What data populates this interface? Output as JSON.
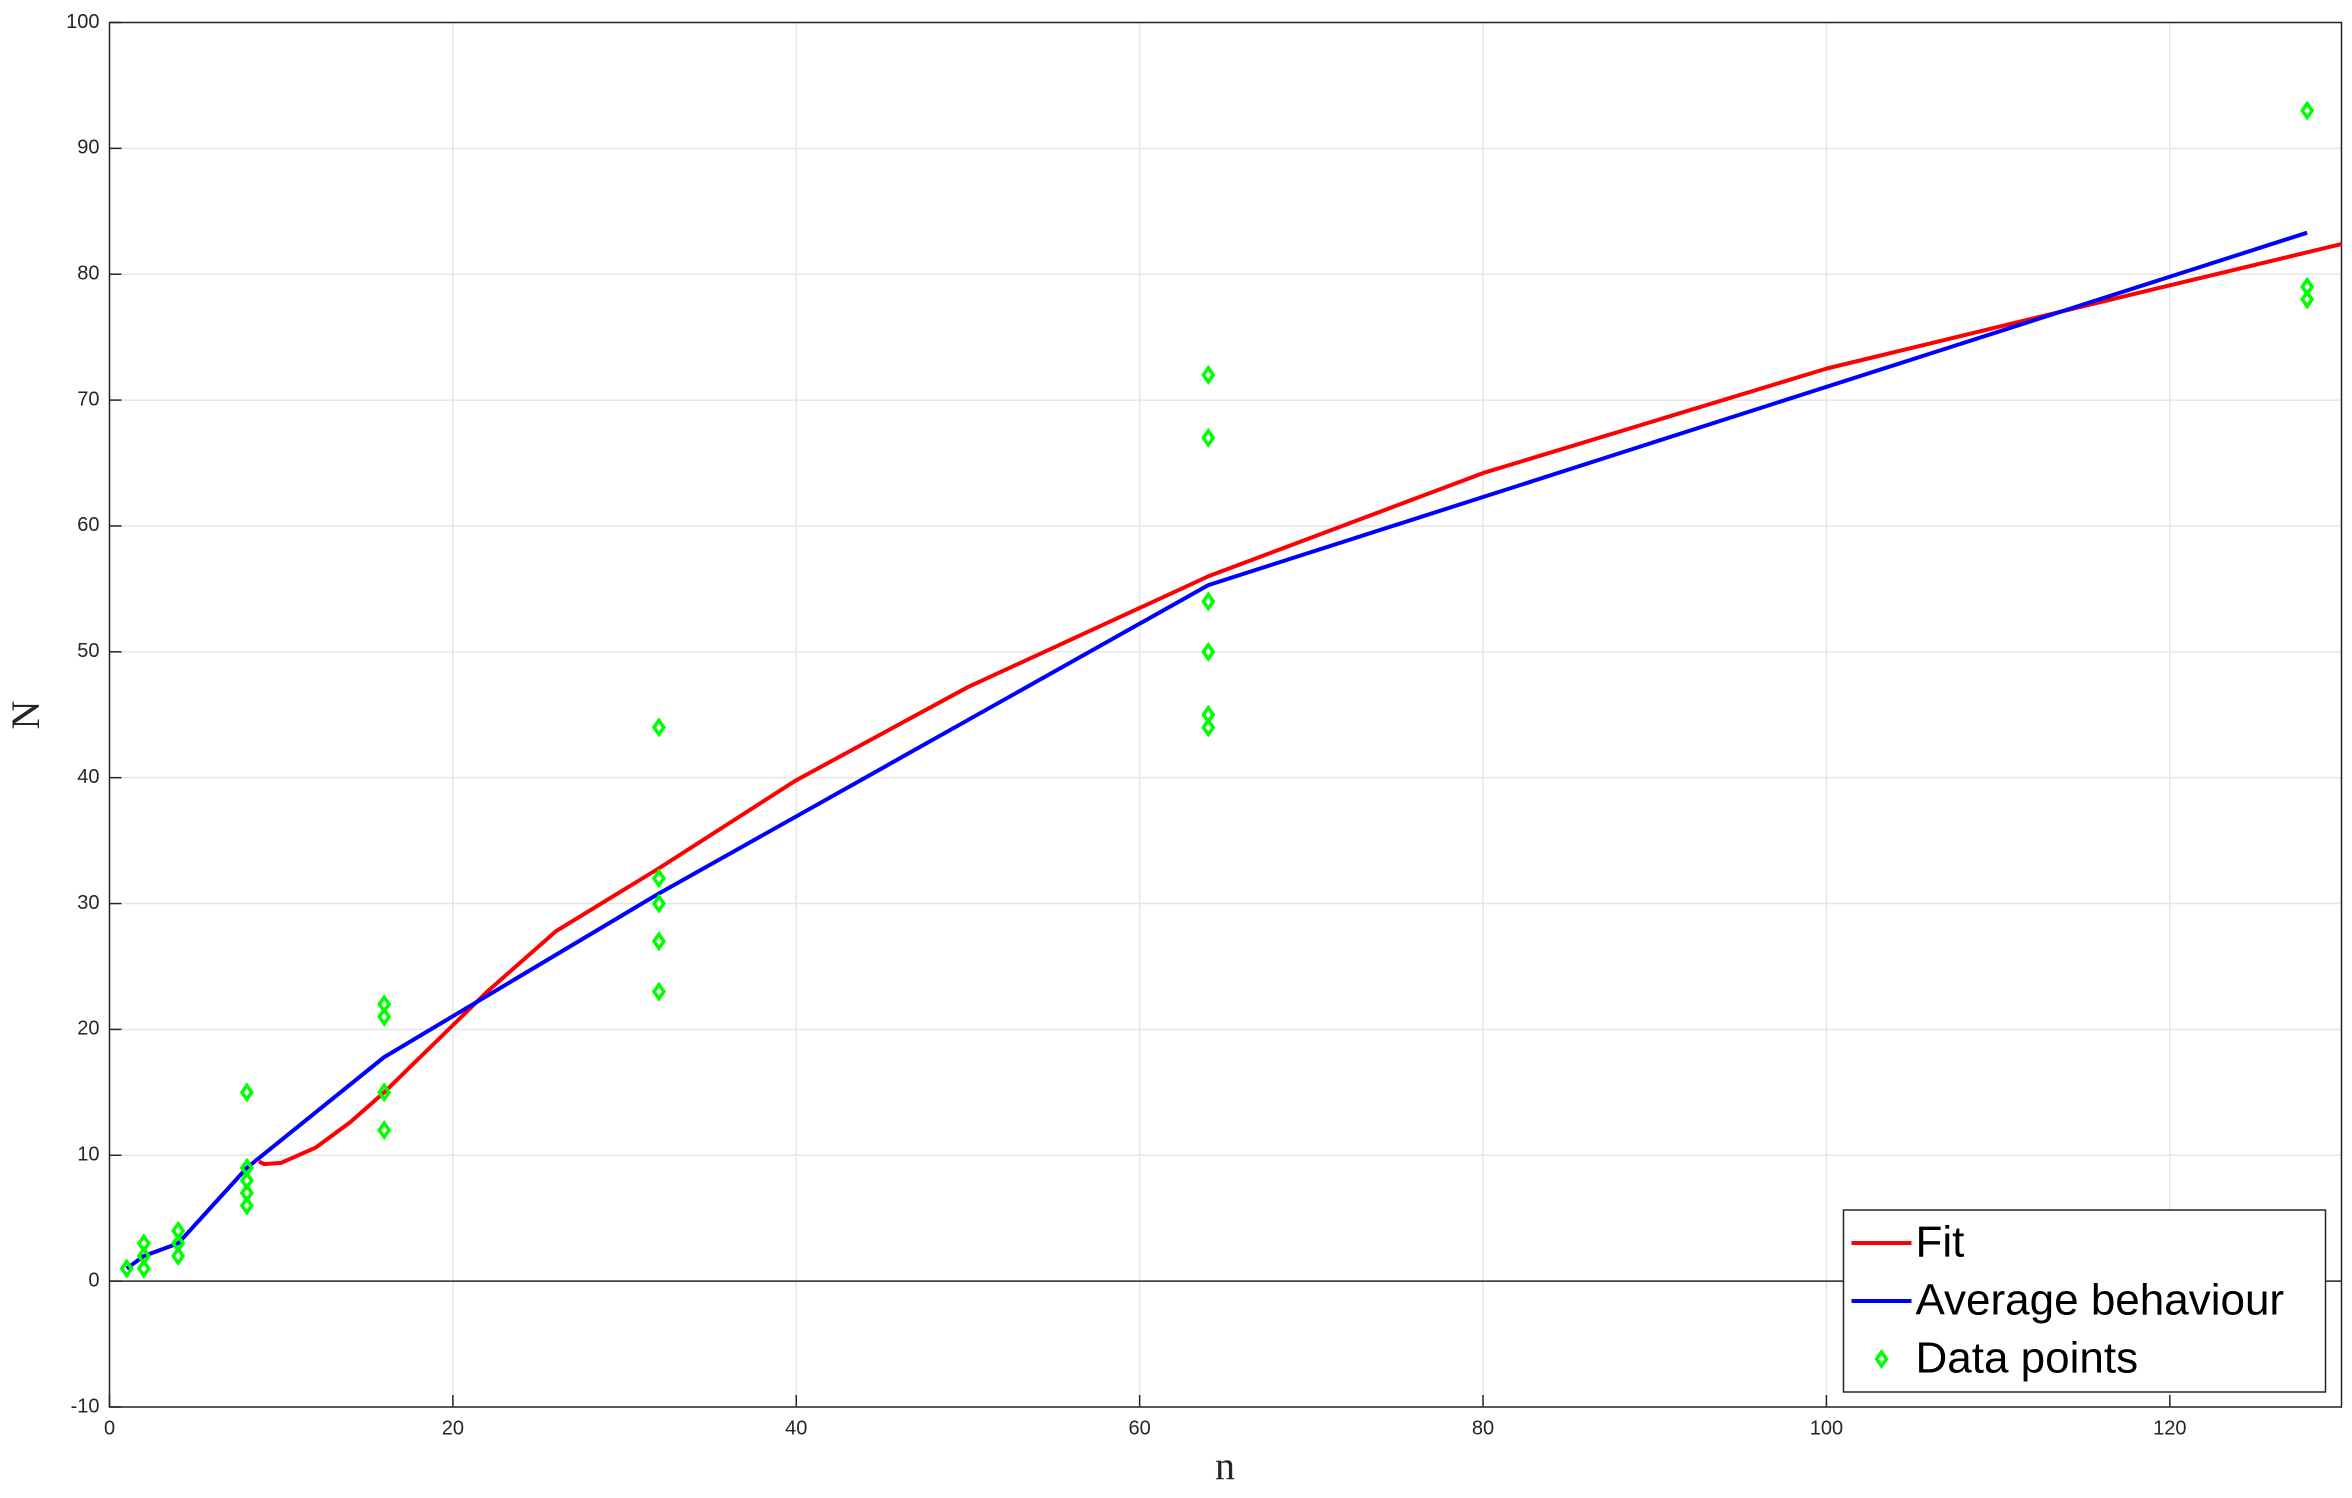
{
  "chart_data": {
    "type": "line",
    "x_label": "n",
    "y_label": "N",
    "xlim": [
      0,
      130
    ],
    "ylim": [
      -10,
      100
    ],
    "xticks": [
      0,
      20,
      40,
      60,
      80,
      100,
      120
    ],
    "yticks": [
      -10,
      0,
      10,
      20,
      30,
      40,
      50,
      60,
      70,
      80,
      90,
      100
    ],
    "grid": true,
    "legend_position": "lower right",
    "series": [
      {
        "name": "Fit",
        "color": "#ff0000",
        "style": "line",
        "x": [
          8.7,
          9,
          10,
          12,
          14,
          16,
          19,
          22,
          26,
          32,
          40,
          50,
          64,
          80,
          100,
          116,
          130
        ],
        "values": [
          9.5,
          9.3,
          9.4,
          10.6,
          12.6,
          15,
          19,
          23,
          27.8,
          32.8,
          39.8,
          47.2,
          56,
          64.2,
          72.5,
          77.8,
          82.4
        ]
      },
      {
        "name": "Average behaviour",
        "color": "#0000ff",
        "style": "line",
        "x": [
          1,
          2,
          4,
          8,
          16,
          32,
          64,
          128
        ],
        "values": [
          1,
          2,
          3,
          9,
          17.8,
          30.8,
          55.3,
          83.3
        ]
      },
      {
        "name": "Data points",
        "color": "#00ff00",
        "style": "marker",
        "x": [
          1,
          2,
          2,
          2,
          4,
          4,
          4,
          8,
          8,
          8,
          8,
          8,
          16,
          16,
          16,
          16,
          32,
          32,
          32,
          32,
          32,
          64,
          64,
          64,
          64,
          64,
          64,
          128,
          128,
          128
        ],
        "values": [
          1,
          1,
          2,
          3,
          2,
          3,
          4,
          6,
          7,
          8,
          9,
          15,
          12,
          15,
          21,
          22,
          23,
          27,
          30,
          32,
          44,
          44,
          45,
          50,
          54,
          67,
          72,
          78,
          79,
          93
        ]
      }
    ]
  }
}
